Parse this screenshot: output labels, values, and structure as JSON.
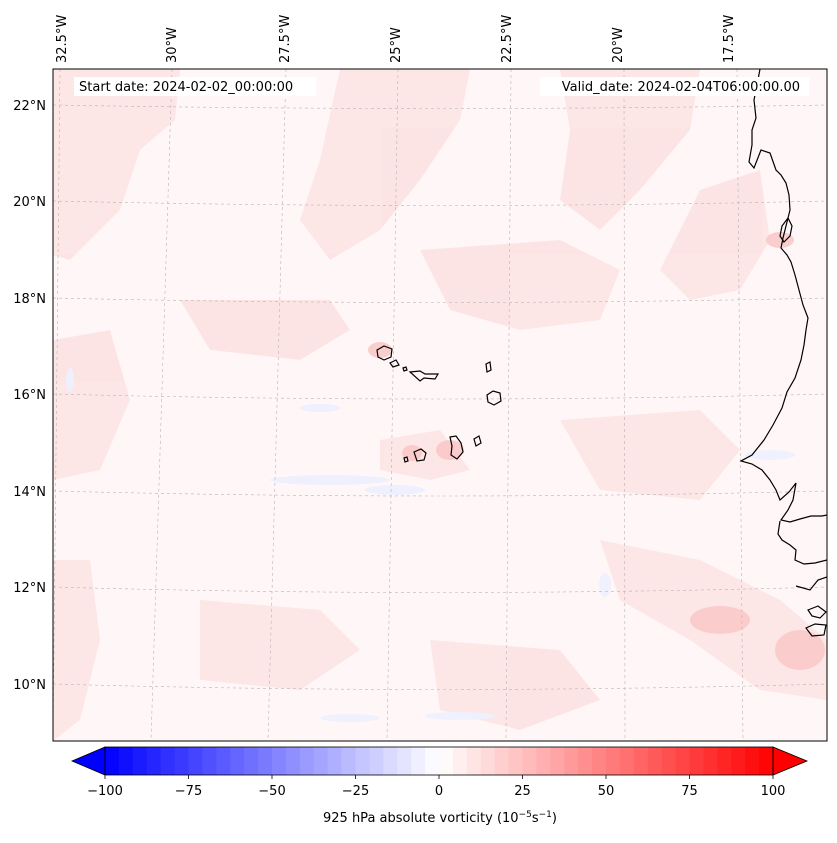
{
  "map": {
    "start_date": "Start date: 2024-02-02_00:00:00",
    "valid_date": "Valid_date: 2024-02-04T06:00:00.00",
    "longitude_labels": [
      "32.5°W",
      "30°W",
      "27.5°W",
      "25°W",
      "22.5°W",
      "20°W",
      "17.5°W"
    ],
    "latitude_labels": [
      "22°N",
      "20°N",
      "18°N",
      "16°N",
      "14°N",
      "12°N",
      "10°N"
    ],
    "features": [
      "Cape Verde islands",
      "West African coastline (Senegal, Mauritania, Gambia, Guinea-Bissau)"
    ]
  },
  "colorbar": {
    "label": "925 hPa absolute vorticity (10",
    "label_exp1": "−5",
    "label_mid": "s",
    "label_exp2": "−1",
    "label_end": ")",
    "min": -100,
    "max": 100,
    "levels": 48,
    "low_color": "#0000ff",
    "mid_color": "#ffffff",
    "high_color": "#ff0000",
    "ticks": [
      "−100",
      "−75",
      "−50",
      "−25",
      "0",
      "25",
      "50",
      "75",
      "100"
    ]
  }
}
